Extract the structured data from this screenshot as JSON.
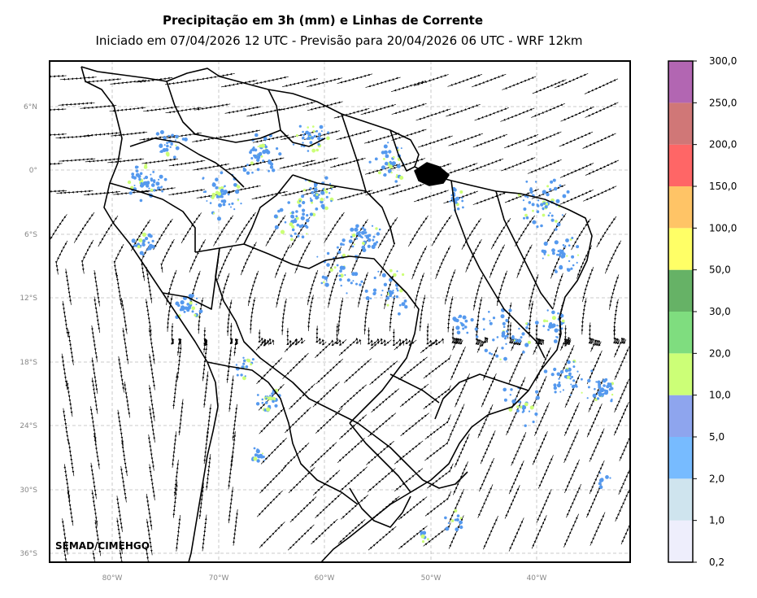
{
  "title": "Precipitação em 3h (mm) e Linhas de Corrente",
  "subtitle": "Iniciado em 07/04/2026 12 UTC - Previsão para 20/04/2026 06 UTC - WRF 12km",
  "credit": "SEMAD/CIMEHGO",
  "lat_labels": [
    "6°N",
    "0°",
    "6°S",
    "12°S",
    "18°S",
    "24°S",
    "30°S",
    "36°S"
  ],
  "lon_labels": [
    "80°W",
    "70°W",
    "60°W",
    "50°W",
    "40°W"
  ],
  "colorbar": {
    "labels": [
      "0,2",
      "1,0",
      "2,0",
      "5,0",
      "10,0",
      "20,0",
      "30,0",
      "50,0",
      "100,0",
      "150,0",
      "200,0",
      "250,0",
      "300,0"
    ],
    "colors": [
      "#eeeefc",
      "#cfe4ee",
      "#77bbff",
      "#8ea5ee",
      "#ccff77",
      "#7fdd7f",
      "#66b266",
      "#ffff66",
      "#ffc466",
      "#ff6666",
      "#d07777",
      "#b266b2"
    ]
  },
  "colors": {
    "rain_light": "#5599ee",
    "rain_medium": "#ccff77",
    "streamline": "#000000",
    "border": "#000000",
    "grid": "#bbbbbb"
  }
}
